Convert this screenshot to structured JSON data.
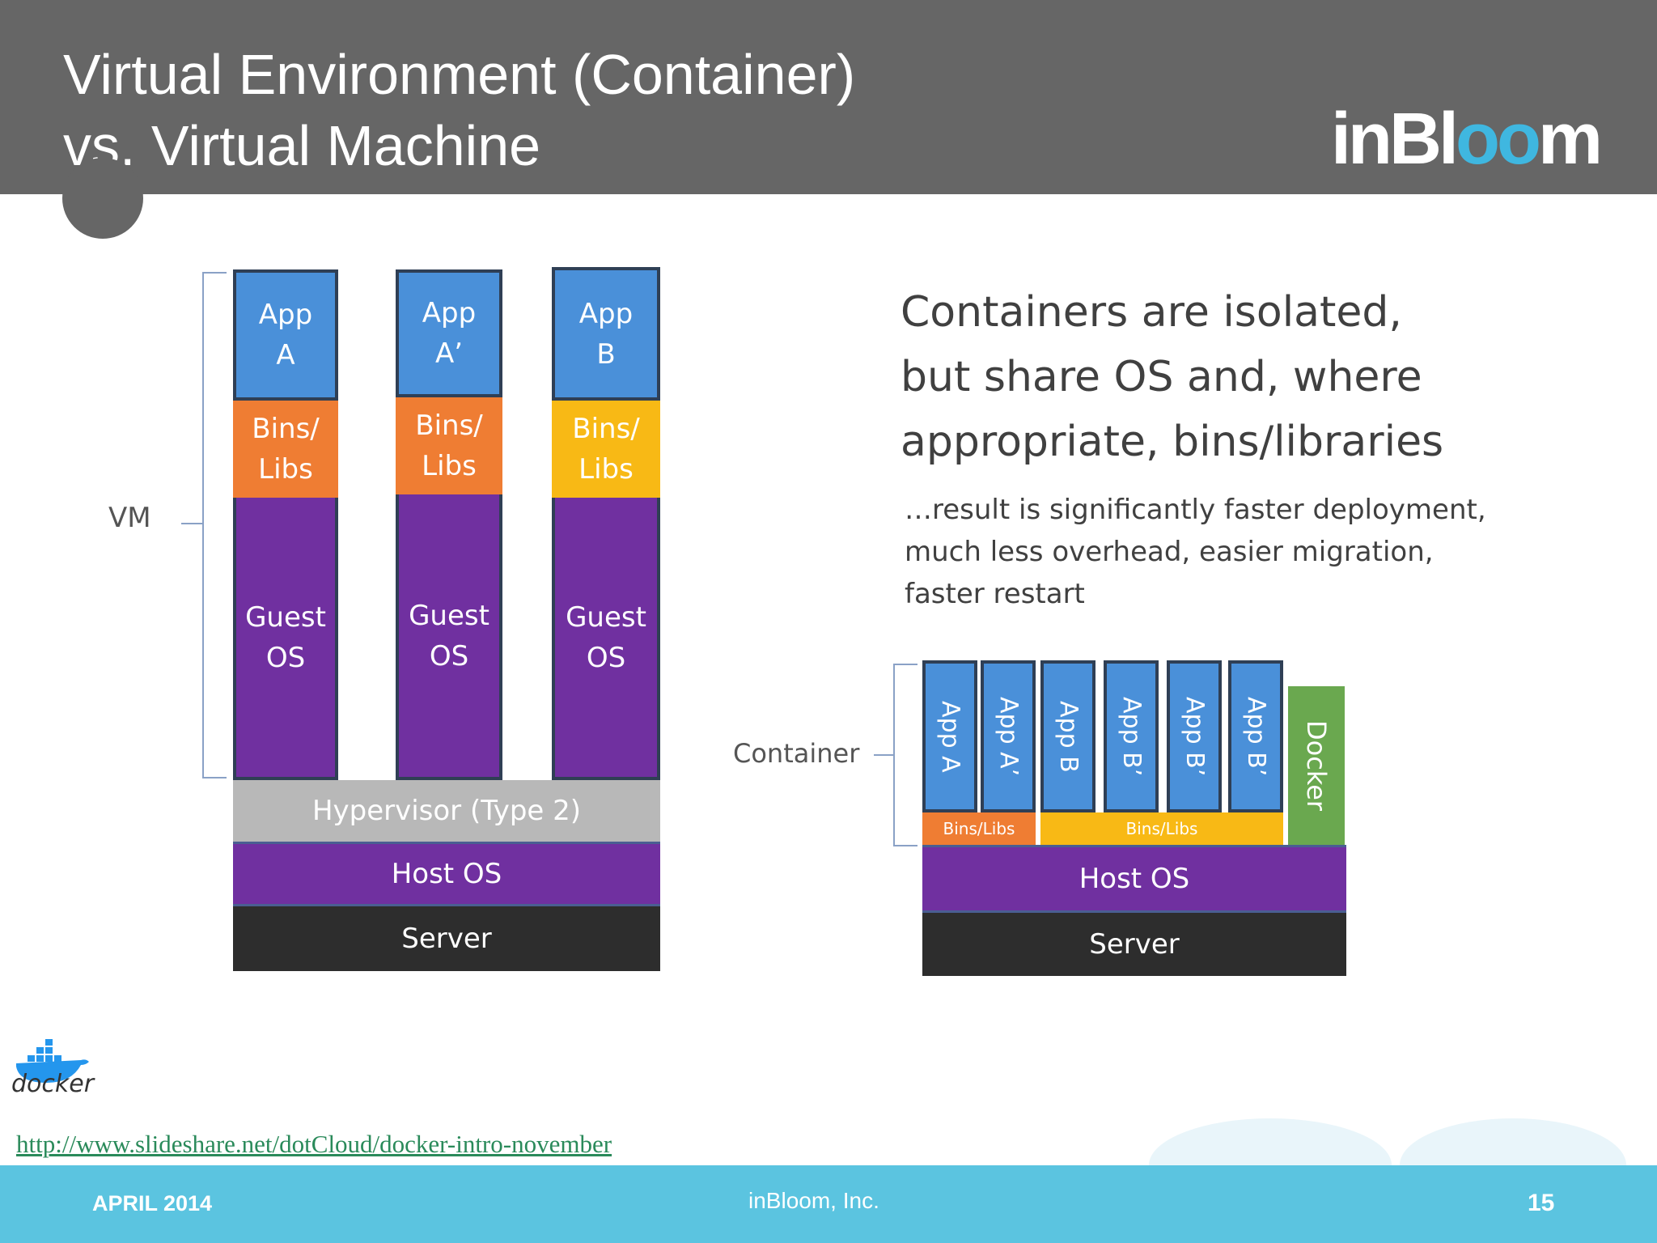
{
  "header": {
    "title_line1": "Virtual Environment (Container)",
    "title_line2": "vs. Virtual Machine",
    "logo_part1": "inBl",
    "logo_ring": "oo",
    "logo_part2": "m"
  },
  "vm_diagram": {
    "label": "VM",
    "columns": [
      {
        "app": "App\nA",
        "bins": "Bins/\nLibs",
        "guest": "Guest\nOS"
      },
      {
        "app": "App\nA’",
        "bins": "Bins/\nLibs",
        "guest": "Guest\nOS"
      },
      {
        "app": "App\nB",
        "bins": "Bins/\nLibs",
        "guest": "Guest\nOS"
      }
    ],
    "hypervisor": "Hypervisor (Type 2)",
    "host_os": "Host OS",
    "server": "Server"
  },
  "container_diagram": {
    "label": "Container",
    "apps": [
      "App A",
      "App A’",
      "App B",
      "App B’",
      "App B’",
      "App B’"
    ],
    "docker": "Docker",
    "bins_left": "Bins/Libs",
    "bins_right": "Bins/Libs",
    "host_os": "Host OS",
    "server": "Server"
  },
  "text": {
    "headline": "Containers are isolated,\nbut share OS and, where\nappropriate, bins/libraries",
    "subline": "…result is significantly faster deployment,\nmuch less overhead, easier migration,\nfaster restart"
  },
  "docker_logo_text": "docker",
  "link": "http://www.slideshare.net/dotCloud/docker-intro-november",
  "footer": {
    "date": "APRIL 2014",
    "company": "inBloom, Inc.",
    "page": "15"
  },
  "colors": {
    "header_gray": "#666666",
    "app_blue": "#4a90d9",
    "bins_orange": "#ef7d33",
    "bins_yellow": "#f8b915",
    "os_purple": "#7030a0",
    "hypervisor_gray": "#b8b8b8",
    "server_black": "#2d2d2d",
    "docker_green": "#6aa84f",
    "footer_cyan": "#5bc4e0"
  }
}
